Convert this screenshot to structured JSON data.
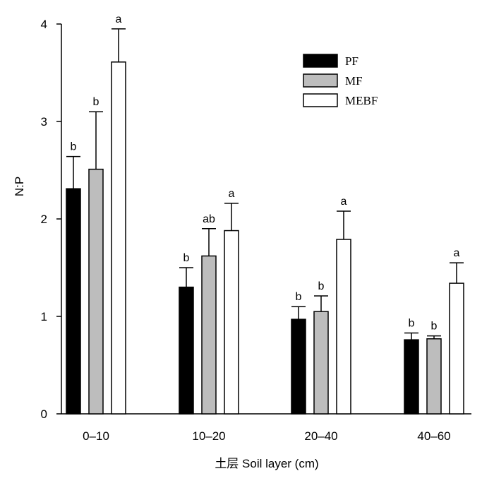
{
  "chart_data": {
    "type": "bar",
    "title": "",
    "xlabel": "土层 Soil layer (cm)",
    "ylabel": "N:P",
    "ylim": [
      0,
      4
    ],
    "yticks": [
      "0",
      "1",
      "2",
      "3",
      "4"
    ],
    "categories": [
      "0–10",
      "10–20",
      "20–40",
      "40–60"
    ],
    "series": [
      {
        "name": "PF",
        "color": "#000000",
        "values": [
          2.31,
          1.3,
          0.97,
          0.76
        ],
        "errors": [
          0.33,
          0.2,
          0.13,
          0.07
        ],
        "sig": [
          "b",
          "b",
          "b",
          "b"
        ]
      },
      {
        "name": "MF",
        "color": "#bdbdbd",
        "values": [
          2.51,
          1.62,
          1.05,
          0.77
        ],
        "errors": [
          0.59,
          0.28,
          0.16,
          0.03
        ],
        "sig": [
          "b",
          "ab",
          "b",
          "b"
        ]
      },
      {
        "name": "MEBF",
        "color": "#ffffff",
        "values": [
          3.61,
          1.88,
          1.79,
          1.34
        ],
        "errors": [
          0.34,
          0.28,
          0.29,
          0.21
        ],
        "sig": [
          "a",
          "a",
          "a",
          "a"
        ]
      }
    ],
    "legend_position": "top-right",
    "grid": false,
    "error_bars": "upper"
  }
}
